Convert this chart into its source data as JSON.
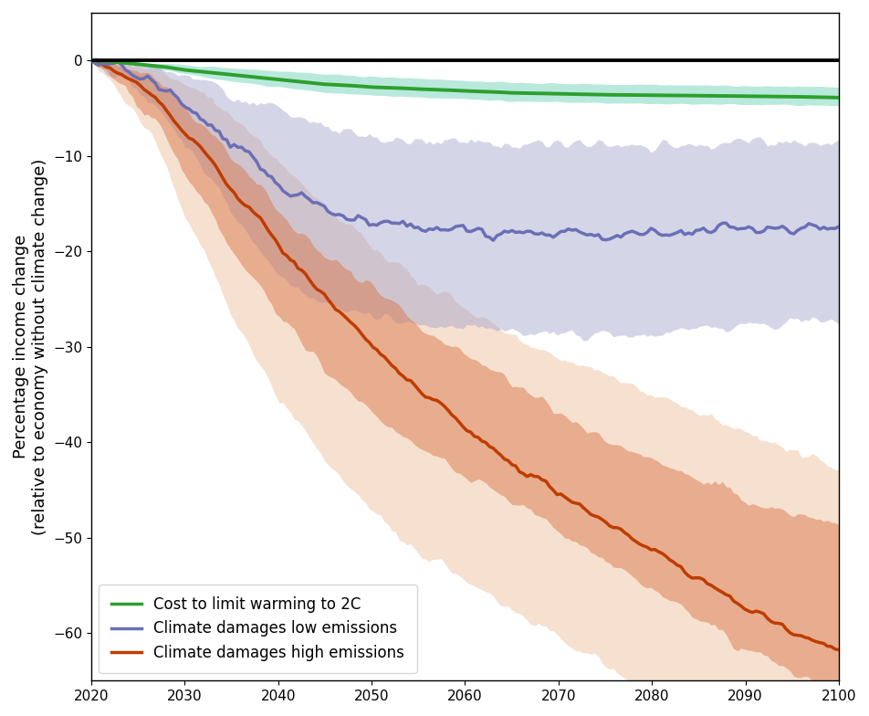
{
  "years": [
    2020,
    2022,
    2025,
    2028,
    2030,
    2033,
    2035,
    2038,
    2040,
    2043,
    2045,
    2048,
    2050,
    2053,
    2055,
    2058,
    2060,
    2063,
    2065,
    2068,
    2070,
    2073,
    2075,
    2078,
    2080,
    2083,
    2085,
    2088,
    2090,
    2093,
    2095,
    2098,
    2100
  ],
  "green_line": [
    0,
    -0.1,
    -0.4,
    -0.7,
    -1.0,
    -1.3,
    -1.5,
    -1.8,
    -2.0,
    -2.3,
    -2.5,
    -2.65,
    -2.8,
    -2.9,
    -3.0,
    -3.1,
    -3.2,
    -3.3,
    -3.4,
    -3.45,
    -3.5,
    -3.55,
    -3.6,
    -3.62,
    -3.65,
    -3.67,
    -3.7,
    -3.72,
    -3.75,
    -3.78,
    -3.8,
    -3.85,
    -3.9
  ],
  "green_ci_upper": [
    0,
    -0.05,
    -0.2,
    -0.35,
    -0.5,
    -0.65,
    -0.8,
    -0.95,
    -1.1,
    -1.25,
    -1.4,
    -1.55,
    -1.7,
    -1.8,
    -1.9,
    -2.0,
    -2.1,
    -2.2,
    -2.3,
    -2.35,
    -2.4,
    -2.45,
    -2.5,
    -2.52,
    -2.55,
    -2.57,
    -2.6,
    -2.62,
    -2.65,
    -2.68,
    -2.7,
    -2.75,
    -2.8
  ],
  "green_ci_lower": [
    0,
    -0.15,
    -0.6,
    -1.0,
    -1.4,
    -1.85,
    -2.2,
    -2.55,
    -2.8,
    -3.1,
    -3.35,
    -3.5,
    -3.65,
    -3.75,
    -3.85,
    -3.95,
    -4.05,
    -4.15,
    -4.25,
    -4.3,
    -4.35,
    -4.4,
    -4.45,
    -4.47,
    -4.5,
    -4.52,
    -4.55,
    -4.58,
    -4.6,
    -4.63,
    -4.65,
    -4.68,
    -4.7
  ],
  "blue_line": [
    0,
    -0.5,
    -1.5,
    -3.0,
    -5.0,
    -7.0,
    -9.0,
    -11.0,
    -13.0,
    -14.5,
    -15.5,
    -16.5,
    -17.0,
    -17.3,
    -17.5,
    -17.6,
    -17.7,
    -17.8,
    -17.9,
    -18.0,
    -18.1,
    -18.2,
    -18.3,
    -18.3,
    -18.2,
    -18.1,
    -18.0,
    -17.9,
    -17.8,
    -17.7,
    -17.6,
    -17.5,
    -17.5
  ],
  "blue_ci_upper": [
    0,
    -0.1,
    -0.3,
    -0.8,
    -1.5,
    -2.5,
    -3.5,
    -4.5,
    -5.5,
    -6.3,
    -7.0,
    -7.5,
    -8.0,
    -8.2,
    -8.3,
    -8.4,
    -8.5,
    -8.6,
    -8.7,
    -8.75,
    -8.8,
    -8.85,
    -8.9,
    -8.9,
    -8.85,
    -8.8,
    -8.75,
    -8.7,
    -8.65,
    -8.6,
    -8.55,
    -8.5,
    -8.4
  ],
  "blue_ci_lower": [
    0,
    -1.0,
    -3.0,
    -5.5,
    -9.0,
    -12.5,
    -16.0,
    -19.5,
    -22.5,
    -24.5,
    -25.5,
    -26.5,
    -27.0,
    -27.3,
    -27.5,
    -27.7,
    -27.9,
    -28.1,
    -28.3,
    -28.4,
    -28.5,
    -28.7,
    -29.0,
    -29.0,
    -28.8,
    -28.5,
    -28.2,
    -28.0,
    -27.8,
    -27.6,
    -27.4,
    -27.2,
    -27.0
  ],
  "orange_line": [
    0,
    -0.8,
    -2.5,
    -5.0,
    -7.5,
    -10.5,
    -13.5,
    -16.5,
    -19.5,
    -22.5,
    -25.0,
    -27.5,
    -30.0,
    -32.5,
    -34.5,
    -36.5,
    -38.5,
    -40.5,
    -42.5,
    -44.0,
    -45.5,
    -47.0,
    -48.5,
    -50.0,
    -51.5,
    -53.0,
    -54.5,
    -56.0,
    -57.5,
    -59.0,
    -60.0,
    -61.0,
    -61.5
  ],
  "orange_ci_inner_upper": [
    0,
    -0.3,
    -1.0,
    -2.5,
    -5.0,
    -7.5,
    -10.0,
    -13.0,
    -16.0,
    -18.5,
    -20.5,
    -22.5,
    -24.0,
    -26.0,
    -28.0,
    -29.5,
    -31.0,
    -32.5,
    -34.0,
    -35.5,
    -37.0,
    -38.5,
    -40.0,
    -41.0,
    -42.0,
    -43.0,
    -44.0,
    -45.0,
    -46.0,
    -47.0,
    -47.5,
    -48.0,
    -48.5
  ],
  "orange_ci_inner_lower": [
    0,
    -1.5,
    -4.5,
    -8.0,
    -12.0,
    -16.0,
    -20.0,
    -23.5,
    -27.0,
    -30.0,
    -32.5,
    -35.0,
    -37.0,
    -39.0,
    -40.5,
    -42.0,
    -43.5,
    -45.0,
    -46.5,
    -48.0,
    -49.5,
    -51.0,
    -52.5,
    -54.0,
    -55.5,
    -57.0,
    -58.5,
    -60.0,
    -61.5,
    -63.0,
    -64.0,
    -65.0,
    -66.0
  ],
  "orange_ci_outer_upper": [
    0,
    -0.1,
    -0.5,
    -1.2,
    -2.5,
    -4.0,
    -6.0,
    -8.5,
    -11.0,
    -13.5,
    -15.5,
    -17.5,
    -19.5,
    -21.5,
    -23.0,
    -24.5,
    -26.0,
    -27.5,
    -29.0,
    -30.0,
    -31.0,
    -32.0,
    -33.0,
    -34.0,
    -35.0,
    -36.0,
    -37.0,
    -38.0,
    -39.0,
    -40.0,
    -41.0,
    -42.0,
    -43.0
  ],
  "orange_ci_outer_lower": [
    0,
    -2.0,
    -6.0,
    -11.0,
    -16.5,
    -22.0,
    -27.0,
    -31.5,
    -35.5,
    -39.0,
    -42.0,
    -45.0,
    -47.5,
    -49.5,
    -51.5,
    -53.0,
    -54.5,
    -56.0,
    -57.5,
    -59.0,
    -60.5,
    -62.0,
    -63.5,
    -65.0,
    -66.5,
    -68.0,
    -69.0,
    -70.0,
    -71.0,
    -72.0,
    -72.5,
    -73.0,
    -73.5
  ],
  "green_color": "#2ca02c",
  "green_ci_color": "#80d8c0",
  "blue_color": "#6b6fb5",
  "blue_ci_color": "#a0a4cc",
  "orange_color": "#bf3c00",
  "orange_inner_color": "#d97040",
  "orange_outer_color": "#e8a878",
  "ylim": [
    -65,
    5
  ],
  "yticks": [
    0,
    -10,
    -20,
    -30,
    -40,
    -50,
    -60
  ],
  "xticks": [
    2020,
    2030,
    2040,
    2050,
    2060,
    2070,
    2080,
    2090,
    2100
  ],
  "ylabel": "Percentage income change\n(relative to economy without climate change)",
  "legend_labels": [
    "Cost to limit warming to 2C",
    "Climate damages low emissions",
    "Climate damages high emissions"
  ],
  "legend_colors": [
    "#2ca02c",
    "#6b6fb5",
    "#bf3c00"
  ],
  "fig_width": 9.52,
  "fig_height": 7.84
}
